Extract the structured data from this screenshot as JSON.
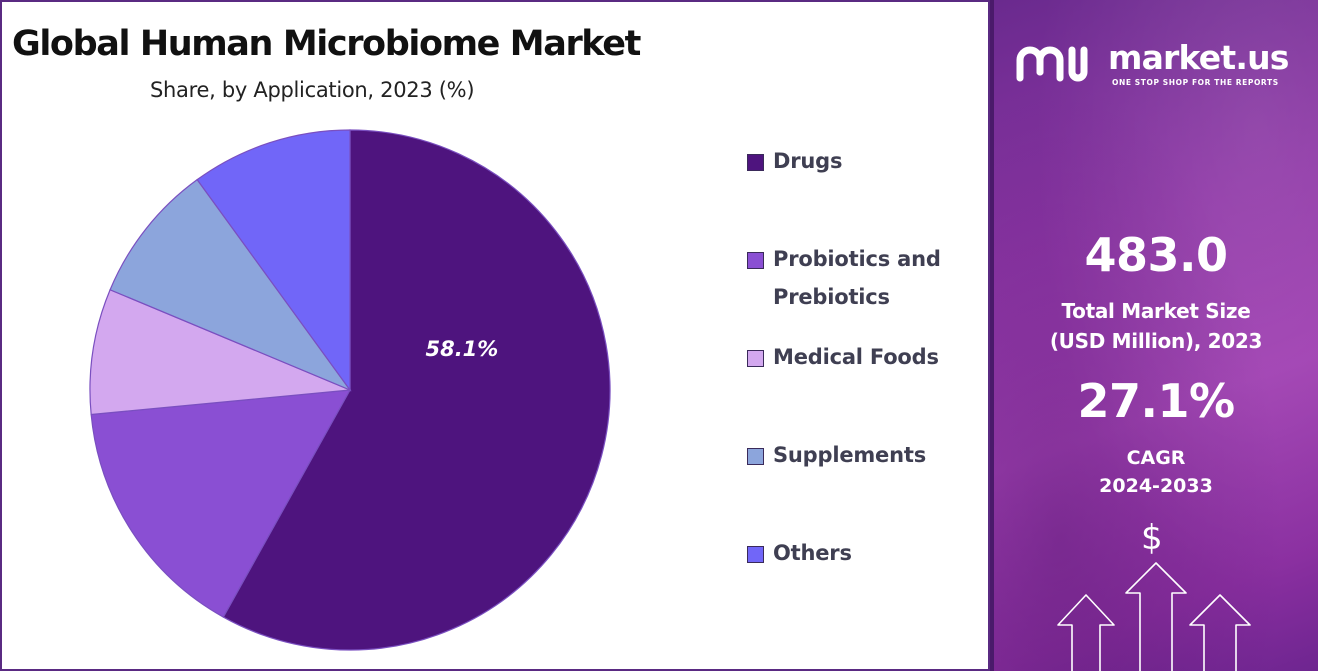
{
  "title": "Global Human Microbiome Market",
  "subtitle": "Share, by Application, 2023 (%)",
  "chart_data": {
    "type": "pie",
    "title": "Global Human Microbiome Market",
    "subtitle": "Share, by Application, 2023 (%)",
    "legend_position": "right",
    "slices": [
      {
        "label": "Drugs",
        "value": 58.1,
        "color": "#4e147e",
        "data_label": "58.1%"
      },
      {
        "label": "Probiotics and Prebiotics",
        "value": 15.4,
        "color": "#8a4fd3",
        "data_label": ""
      },
      {
        "label": "Medical Foods",
        "value": 7.8,
        "color": "#d3a8ef",
        "data_label": ""
      },
      {
        "label": "Supplements",
        "value": 8.7,
        "color": "#8ca5dc",
        "data_label": ""
      },
      {
        "label": "Others",
        "value": 10.0,
        "color": "#7166f8",
        "data_label": ""
      }
    ]
  },
  "legend": {
    "items": [
      {
        "label": "Drugs",
        "color": "#4e147e"
      },
      {
        "label": "Probiotics and Prebiotics",
        "color": "#8a4fd3"
      },
      {
        "label": "Medical Foods",
        "color": "#d3a8ef"
      },
      {
        "label": "Supplements",
        "color": "#8ca5dc"
      },
      {
        "label": "Others",
        "color": "#7166f8"
      }
    ]
  },
  "brand": {
    "name": "market.us",
    "tagline": "ONE STOP SHOP FOR THE REPORTS",
    "logo_icon": "market-us-logo-icon"
  },
  "stats": {
    "market_size_value": "483.0",
    "market_size_label_line1": "Total Market Size",
    "market_size_label_line2": "(USD Million), 2023",
    "cagr_value": "27.1%",
    "cagr_label_line1": "CAGR",
    "cagr_label_line2": "2024-2033"
  },
  "decor": {
    "dollar_symbol": "$",
    "arrow_icon": "up-arrow-icon"
  },
  "colors": {
    "panel_start": "#6a2a8e",
    "panel_mid": "#a040b2",
    "border": "#5a2a82"
  }
}
